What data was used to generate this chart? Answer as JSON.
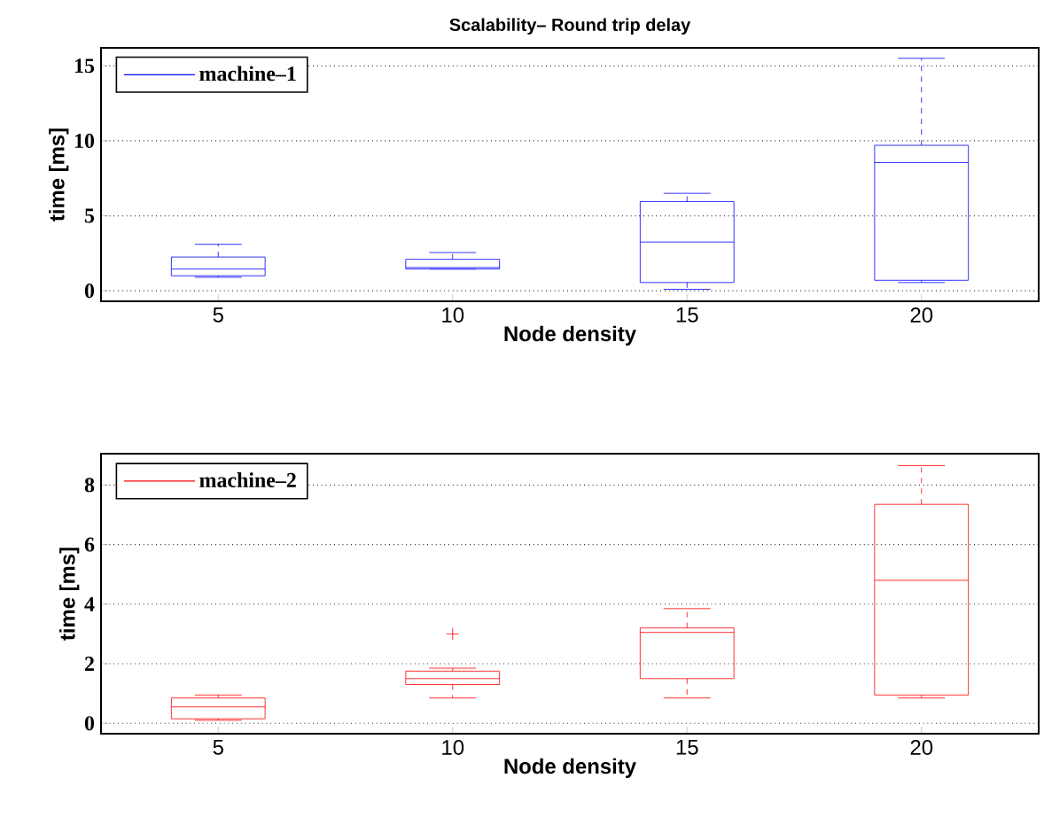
{
  "chart_data": [
    {
      "type": "box",
      "title": "Scalability– Round trip delay",
      "xlabel": "Node density",
      "ylabel": "time [ms]",
      "categories": [
        "5",
        "10",
        "15",
        "20"
      ],
      "ylim": [
        -0.7,
        16.2
      ],
      "yticks": [
        0,
        5,
        10,
        15
      ],
      "grid": "y",
      "legend": "top left",
      "series": [
        {
          "name": "machine–1",
          "color": "#0000ff",
          "boxes": [
            {
              "low": 0.9,
              "q1": 1.0,
              "median": 1.45,
              "q3": 2.25,
              "high": 3.1
            },
            {
              "low": 1.45,
              "q1": 1.45,
              "median": 1.55,
              "q3": 2.1,
              "high": 2.55
            },
            {
              "low": 0.1,
              "q1": 0.55,
              "median": 3.25,
              "q3": 5.95,
              "high": 6.5
            },
            {
              "low": 0.55,
              "q1": 0.7,
              "median": 8.55,
              "q3": 9.7,
              "high": 15.5
            }
          ]
        }
      ]
    },
    {
      "type": "box",
      "xlabel": "Node density",
      "ylabel": "time [ms]",
      "categories": [
        "5",
        "10",
        "15",
        "20"
      ],
      "ylim": [
        -0.35,
        9.05
      ],
      "yticks": [
        0,
        2,
        4,
        6,
        8
      ],
      "grid": "y",
      "legend": "top left",
      "series": [
        {
          "name": "machine–2",
          "color": "#ff0000",
          "boxes": [
            {
              "low": 0.1,
              "q1": 0.15,
              "median": 0.55,
              "q3": 0.85,
              "high": 0.95
            },
            {
              "low": 0.85,
              "q1": 1.3,
              "median": 1.5,
              "q3": 1.75,
              "high": 1.85,
              "outliers": [
                3
              ]
            },
            {
              "low": 0.85,
              "q1": 1.5,
              "median": 3.05,
              "q3": 3.2,
              "high": 3.85
            },
            {
              "low": 0.85,
              "q1": 0.95,
              "median": 4.8,
              "q3": 7.35,
              "high": 8.65
            }
          ]
        }
      ]
    }
  ]
}
